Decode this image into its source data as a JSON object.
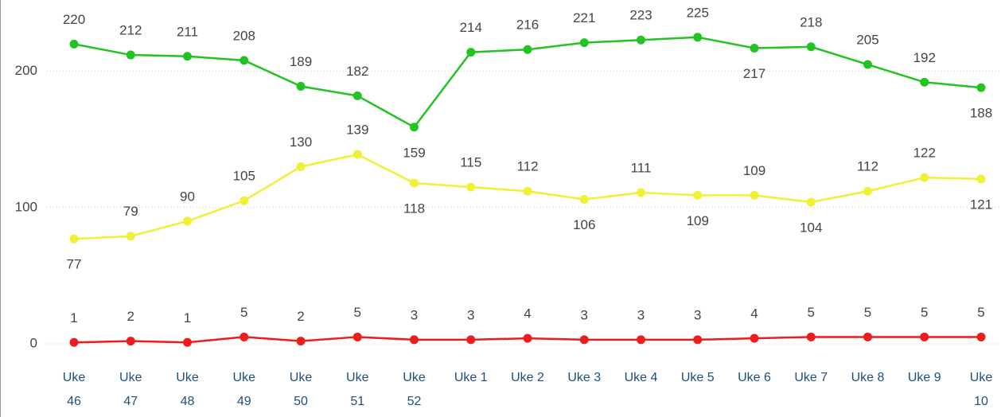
{
  "chart_data": {
    "type": "line",
    "categories": [
      "Uke 46",
      "Uke 47",
      "Uke 48",
      "Uke 49",
      "Uke 50",
      "Uke 51",
      "Uke 52",
      "Uke 1",
      "Uke 2",
      "Uke 3",
      "Uke 4",
      "Uke 5",
      "Uke 6",
      "Uke 7",
      "Uke 8",
      "Uke 9",
      "Uke 10"
    ],
    "series": [
      {
        "color": "#22c322",
        "values": [
          220,
          212,
          211,
          208,
          189,
          182,
          159,
          214,
          216,
          221,
          223,
          225,
          217,
          218,
          205,
          192,
          188
        ]
      },
      {
        "color": "#f0f035",
        "values": [
          77,
          79,
          90,
          105,
          130,
          139,
          118,
          115,
          112,
          106,
          111,
          109,
          109,
          104,
          112,
          122,
          121
        ]
      },
      {
        "color": "#ee1c1c",
        "values": [
          1,
          2,
          1,
          5,
          2,
          5,
          3,
          3,
          4,
          3,
          3,
          3,
          4,
          5,
          5,
          5,
          5
        ]
      }
    ],
    "ylim": [
      0,
      250
    ],
    "yticks": [
      0,
      100,
      200
    ],
    "grid": true
  }
}
